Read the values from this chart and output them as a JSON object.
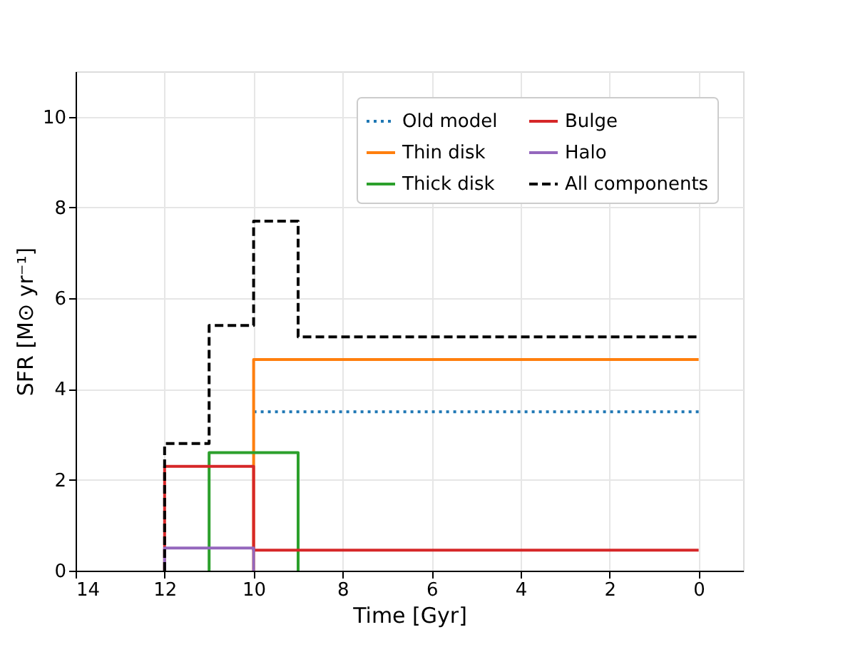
{
  "chart_data": {
    "type": "line",
    "xlabel": "Time [Gyr]",
    "ylabel": "SFR [M⊙ yr⁻¹]",
    "xlim": [
      14,
      -1
    ],
    "ylim": [
      0,
      11
    ],
    "xticks": [
      14,
      12,
      10,
      8,
      6,
      4,
      2,
      0
    ],
    "yticks": [
      0,
      2,
      4,
      6,
      8,
      10
    ],
    "grid": true,
    "legend": "top right",
    "series": [
      {
        "name": "Old model",
        "color": "#1f77b4",
        "line_style": "dotted",
        "x": [
          10,
          0
        ],
        "values": [
          3.5,
          3.5
        ]
      },
      {
        "name": "Thin disk",
        "color": "#ff7f0e",
        "line_style": "solid",
        "x": [
          10,
          10,
          0
        ],
        "values": [
          0,
          4.65,
          4.65
        ]
      },
      {
        "name": "Thick disk",
        "color": "#2ca02c",
        "line_style": "solid",
        "x": [
          11,
          11,
          9,
          9
        ],
        "values": [
          0,
          2.6,
          2.6,
          0
        ]
      },
      {
        "name": "Bulge",
        "color": "#d62728",
        "line_style": "solid",
        "x": [
          12,
          12,
          10,
          10,
          0
        ],
        "values": [
          0,
          2.3,
          2.3,
          0.45,
          0.45
        ]
      },
      {
        "name": "Halo",
        "color": "#9467bd",
        "line_style": "solid",
        "x": [
          12,
          12,
          10,
          10
        ],
        "values": [
          0,
          0.5,
          0.5,
          0
        ]
      },
      {
        "name": "All components",
        "color": "#000000",
        "line_style": "dashed",
        "x": [
          12,
          12,
          11,
          11,
          10,
          10,
          9,
          9,
          0
        ],
        "values": [
          0,
          2.8,
          2.8,
          5.4,
          5.4,
          7.7,
          7.7,
          5.15,
          5.15
        ]
      }
    ]
  }
}
